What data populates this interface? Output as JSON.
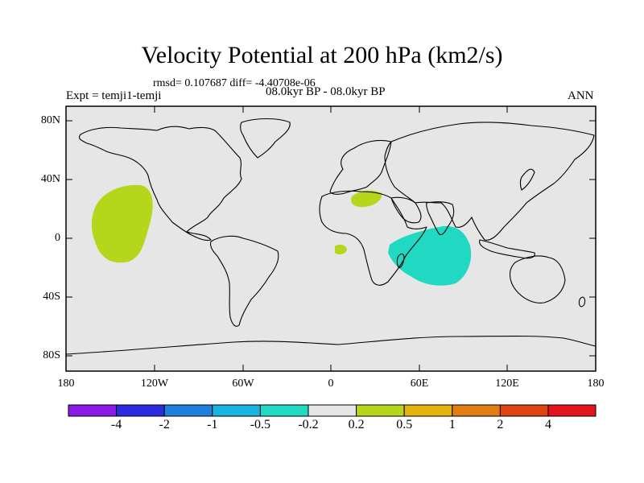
{
  "title": "Velocity Potential at 200 hPa (km2/s)",
  "stats": "rmsd= 0.107687  diff= -4.40708e-06",
  "experiment": "Expt = temji1-temji",
  "period": "08.0kyr BP - 08.0kyr BP",
  "season": "ANN",
  "lat_ticks": [
    "80N",
    "40N",
    "0",
    "40S",
    "80S"
  ],
  "lon_ticks": [
    "180",
    "120W",
    "60W",
    "0",
    "60E",
    "120E",
    "180"
  ],
  "colorbar": {
    "labels": [
      "-4",
      "-2",
      "-1",
      "-0.5",
      "-0.2",
      "0.2",
      "0.5",
      "1",
      "2",
      "4"
    ],
    "colors": [
      "#8a1ae6",
      "#2a2adf",
      "#1e7fdc",
      "#19b4e0",
      "#21d9c3",
      "#e6e6e6",
      "#b4d71b",
      "#e3b410",
      "#e07d15",
      "#dd4411",
      "#e3141e"
    ]
  },
  "features": {
    "positive_region_color": "#b4d71b",
    "negative_region_color": "#21d9c3",
    "background_color": "#e6e6e6"
  }
}
